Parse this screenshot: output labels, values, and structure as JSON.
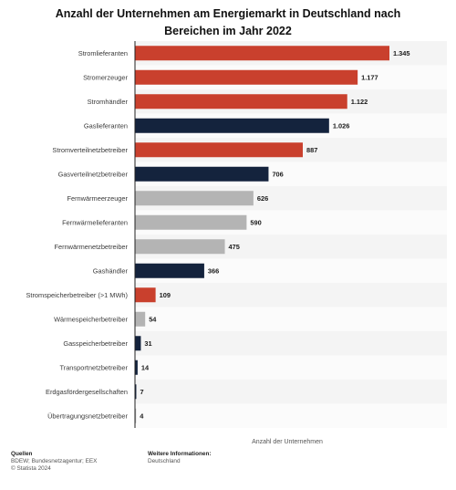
{
  "chart_data": {
    "type": "bar",
    "orientation": "horizontal",
    "title": "Anzahl der Unternehmen am Energiemarkt in Deutschland nach Bereichen im Jahr 2022",
    "xlabel": "Anzahl der Unternehmen",
    "ylabel": "",
    "xlim": [
      0,
      1400
    ],
    "grid": false,
    "categories": [
      "Stromlieferanten",
      "Stromerzeuger",
      "Stromhändler",
      "Gaslieferanten",
      "Stromverteilnetzbetreiber",
      "Gasverteilnetzbetreiber",
      "Fernwärmeerzeuger",
      "Fernwärmelieferanten",
      "Fernwärmenetzbetreiber",
      "Gashändler",
      "Stromspeicherbetreiber (>1 MWh)",
      "Wärmespeicherbetreiber",
      "Gasspeicherbetreiber",
      "Transportnetzbetreiber",
      "Erdgasfördergesellschaften",
      "Übertragungsnetzbetreiber"
    ],
    "values": [
      1345,
      1177,
      1122,
      1026,
      887,
      706,
      626,
      590,
      475,
      366,
      109,
      54,
      31,
      14,
      7,
      4
    ],
    "value_labels": [
      "1.345",
      "1.177",
      "1.122",
      "1.026",
      "887",
      "706",
      "626",
      "590",
      "475",
      "366",
      "109",
      "54",
      "31",
      "14",
      "7",
      "4"
    ],
    "bar_colors": [
      "#c9402d",
      "#c9402d",
      "#c9402d",
      "#14233d",
      "#c9402d",
      "#14233d",
      "#b4b4b4",
      "#b4b4b4",
      "#b4b4b4",
      "#14233d",
      "#c9402d",
      "#b4b4b4",
      "#14233d",
      "#14233d",
      "#14233d",
      "#b4b4b4"
    ]
  },
  "footer": {
    "sources_heading": "Quellen",
    "sources_text": "BDEW; Bundesnetzagentur; EEX",
    "copyright": "© Statista 2024",
    "info_heading": "Weitere Informationen:",
    "info_text": "Deutschland"
  }
}
